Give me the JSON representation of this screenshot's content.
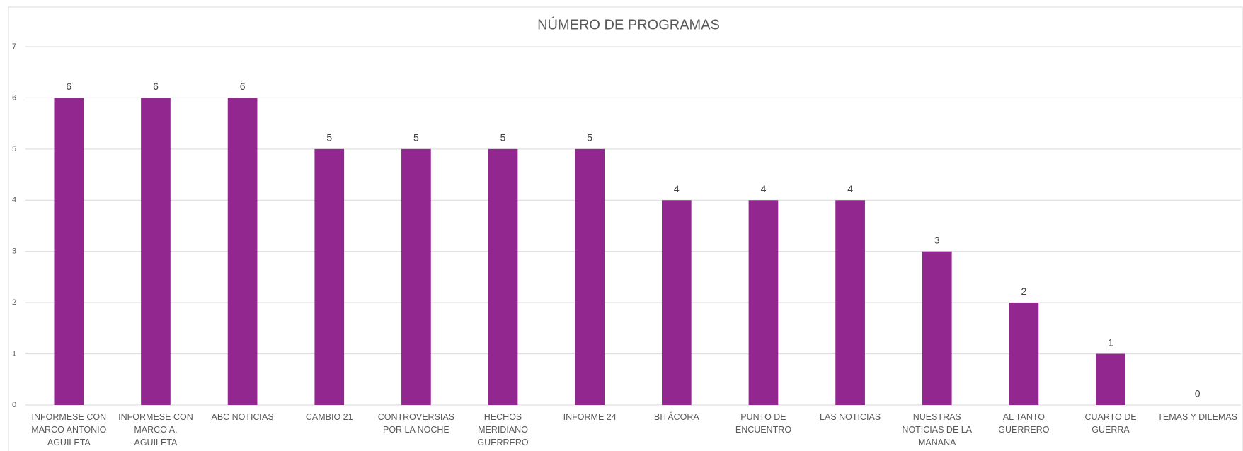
{
  "chart_data": {
    "type": "bar",
    "title": "NÚMERO DE PROGRAMAS",
    "categories": [
      "INFORMESE CON MARCO ANTONIO AGUILETA",
      "INFORMESE CON MARCO A. AGUILETA",
      "ABC NOTICIAS",
      "CAMBIO 21",
      "CONTROVERSIAS POR LA NOCHE",
      "HECHOS MERIDIANO GUERRERO",
      "INFORME 24",
      "BITÁCORA",
      "PUNTO DE ENCUENTRO",
      "LAS NOTICIAS",
      "NUESTRAS NOTICIAS DE LA MANANA",
      "AL TANTO GUERRERO",
      "CUARTO DE GUERRA",
      "TEMAS Y DILEMAS"
    ],
    "values": [
      6,
      6,
      6,
      5,
      5,
      5,
      5,
      4,
      4,
      4,
      3,
      2,
      1,
      0
    ],
    "color": "#92278f",
    "ylim": [
      0,
      7
    ],
    "yticks": [
      0,
      1,
      2,
      3,
      4,
      5,
      6,
      7
    ],
    "grid": true
  }
}
